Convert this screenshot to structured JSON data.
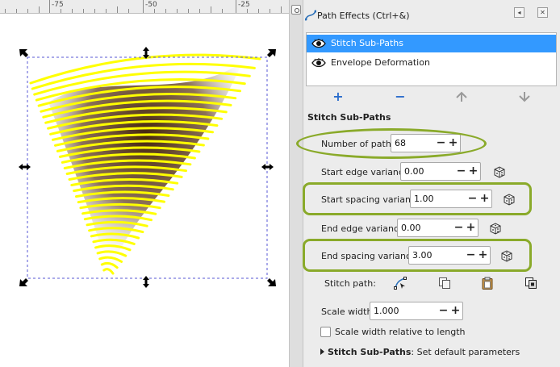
{
  "ruler": {
    "labels": [
      "-75",
      "-50",
      "-25"
    ]
  },
  "dialog": {
    "title": "Path Effects (Ctrl+&)",
    "icons": [
      "path-effects-icon",
      "dock-icon",
      "close-icon"
    ]
  },
  "effects": [
    {
      "label": "Stitch Sub-Paths",
      "selected": true,
      "visible_icon": "eye-icon"
    },
    {
      "label": "Envelope Deformation",
      "selected": false,
      "visible_icon": "eye-icon"
    }
  ],
  "list_buttons": {
    "add": "+",
    "remove": "−",
    "up_icon": "arrow-up-icon",
    "down_icon": "arrow-down-icon"
  },
  "params": {
    "section_title": "Stitch Sub-Paths",
    "number_of_paths": {
      "label": "Number of paths:",
      "value": "68"
    },
    "start_edge_variance": {
      "label": "Start edge variance:",
      "value": "0.00"
    },
    "start_spacing_variance": {
      "label": "Start spacing variance:",
      "value": "1.00"
    },
    "end_edge_variance": {
      "label": "End edge variance:",
      "value": "0.00"
    },
    "end_spacing_variance": {
      "label": "End spacing variance:",
      "value": "3.00"
    },
    "stitch_path": {
      "label": "Stitch path:"
    },
    "scale_width": {
      "label": "Scale width:",
      "value": "1.000"
    },
    "scale_relative": {
      "label": "Scale width relative to length",
      "checked": false
    },
    "expander": {
      "bold": "Stitch Sub-Paths",
      "text": ": Set default parameters"
    },
    "spin_plus": "+",
    "spin_minus": "−"
  },
  "colors": {
    "highlight": "#8aaa2a",
    "selection": "#3399ff",
    "stroke_yellow": "#ffff00",
    "shadow_brown": "#3b1a00"
  }
}
